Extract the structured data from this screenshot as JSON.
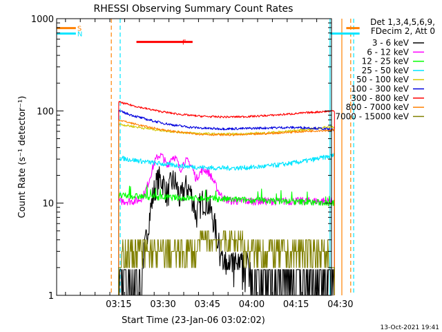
{
  "chart_data": {
    "type": "line",
    "title": "RHESSI Observing Summary Count Rates",
    "xlabel": "Start Time (23-Jan-06 03:02:02)",
    "ylabel": "Count Rate (s⁻¹ detector⁻¹)",
    "yscale": "log",
    "ylim": [
      1,
      1000
    ],
    "xlim_minutes_from_start": [
      -8,
      85
    ],
    "x_ticks": [
      "03:15",
      "03:30",
      "03:45",
      "04:00",
      "04:15",
      "04:30"
    ],
    "x_tick_minutes": [
      13,
      28,
      43,
      58,
      73,
      88
    ],
    "y_ticks": [
      "1",
      "10",
      "100",
      "1000"
    ],
    "y_tick_values": [
      1,
      10,
      100,
      1000
    ],
    "legend_header": [
      "Det 1,3,4,5,6,9,",
      "FDecim 2, Att 0"
    ],
    "legend_position": "right",
    "series": [
      {
        "name": "3 - 6 keV",
        "color": "#000000",
        "profile": "flare",
        "base": 1.3,
        "peak": 18,
        "noise": 0.35
      },
      {
        "name": "6 - 12 keV",
        "color": "#ff00ff",
        "profile": "flare",
        "base": 10.5,
        "peak": 33,
        "noise": 0.1
      },
      {
        "name": "12 - 25 keV",
        "color": "#00ff00",
        "profile": "flat",
        "start": 12,
        "end": 10,
        "noise": 0.08
      },
      {
        "name": "25 - 50 keV",
        "color": "#00e5ff",
        "profile": "bowl",
        "start": 31,
        "min": 24,
        "end": 33,
        "noise": 0.06
      },
      {
        "name": "50 - 100 keV",
        "color": "#d4c800",
        "profile": "bowl",
        "start": 72,
        "min": 56,
        "end": 68,
        "noise": 0.03
      },
      {
        "name": "100 - 300 keV",
        "color": "#0000dd",
        "profile": "bowl",
        "start": 100,
        "min": 64,
        "end": 62,
        "noise": 0.03
      },
      {
        "name": "300 - 800 keV",
        "color": "#ff0000",
        "profile": "bowl",
        "start": 125,
        "min": 86,
        "end": 100,
        "noise": 0.025
      },
      {
        "name": "800 - 7000 keV",
        "color": "#ff8000",
        "profile": "bowl",
        "start": 80,
        "min": 55,
        "end": 62,
        "noise": 0.025
      },
      {
        "name": "7000 - 15000 keV",
        "color": "#808000",
        "profile": "steps",
        "levels": [
          2,
          3,
          4
        ],
        "noise": 0
      }
    ],
    "data_window_minutes": [
      13,
      86
    ],
    "annotations": [
      {
        "label": "S",
        "color": "#ff8000",
        "from": -8,
        "to": -1.5,
        "value": 790
      },
      {
        "label": "N",
        "color": "#00e5ff",
        "from": -8,
        "to": -1.5,
        "value": 690
      },
      {
        "label": "F",
        "color": "#ff0000",
        "from": 19,
        "to": 38,
        "value": 560
      },
      {
        "label": "",
        "color": "#ff8000",
        "from": 90,
        "to": 94.5,
        "value": 790
      },
      {
        "label": "",
        "color": "#00e5ff",
        "from": 84.5,
        "to": 94.5,
        "value": 690
      }
    ],
    "verticals": [
      {
        "minute": 10.5,
        "color": "#ff8000",
        "dashed": true
      },
      {
        "minute": 13.5,
        "color": "#00e5ff",
        "dashed": true
      },
      {
        "minute": 84.5,
        "color": "#00e5ff",
        "dashed": false
      },
      {
        "minute": 88.5,
        "color": "#ff8000",
        "dashed": false
      },
      {
        "minute": 91.5,
        "color": "#ff8000",
        "dashed": true
      },
      {
        "minute": 92.5,
        "color": "#00e5ff",
        "dashed": true
      }
    ]
  },
  "footer_date": "13-Oct-2021 19:41"
}
